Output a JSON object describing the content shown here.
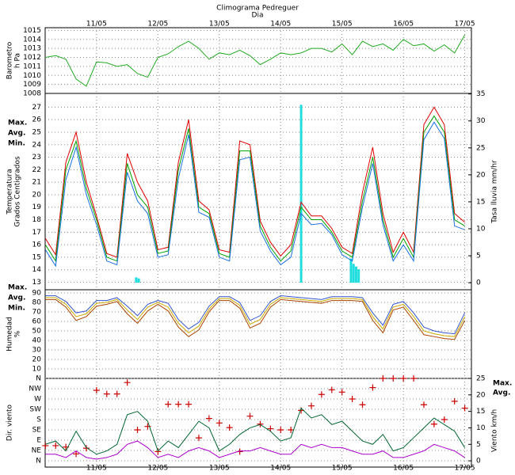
{
  "chart_data": [
    {
      "type": "line",
      "title": "Climograma Pedreguer",
      "xlabel": "Dia",
      "xtick_labels": "top",
      "ylabel": [
        "Barometro",
        "h Pa"
      ],
      "ylabel_color": "#22aa22",
      "x": [
        4,
        8,
        12,
        16,
        20,
        24,
        28,
        32,
        36,
        40,
        44,
        48,
        52,
        56,
        60,
        64,
        68,
        72,
        76,
        80,
        84,
        88,
        92,
        96,
        100,
        104,
        108,
        112,
        116,
        120,
        124,
        128,
        132,
        136,
        140,
        144,
        148,
        152,
        156,
        160,
        164,
        168
      ],
      "xlim": [
        3.9,
        170.6
      ],
      "xticks": [
        {
          "value": 24,
          "label": "11/05"
        },
        {
          "value": 48,
          "label": "12/05"
        },
        {
          "value": 72,
          "label": "13/05"
        },
        {
          "value": 96,
          "label": "14/05"
        },
        {
          "value": 120,
          "label": "15/05"
        },
        {
          "value": 144,
          "label": "16/05"
        },
        {
          "value": 168,
          "label": "17/05"
        }
      ],
      "ylim": [
        1008,
        1015.3
      ],
      "yticks": [
        1008,
        1009,
        1010,
        1011,
        1012,
        1013,
        1014,
        1015
      ],
      "grid": true,
      "series": [
        {
          "color": "#22aa22",
          "values": [
            1012,
            1012.2,
            1011.8,
            1009.6,
            1008.8,
            1011.5,
            1011.4,
            1011,
            1011.2,
            1010.2,
            1009.8,
            1012,
            1012.4,
            1013.2,
            1013.8,
            1013,
            1011.8,
            1012.5,
            1012.3,
            1012.8,
            1012.2,
            1011.2,
            1011.8,
            1012.5,
            1012.3,
            1012.5,
            1013,
            1013,
            1012.6,
            1013.5,
            1012.3,
            1013.8,
            1013.2,
            1013.5,
            1012.8,
            1014,
            1013.3,
            1013.5,
            1012.7,
            1013.4,
            1012.5,
            1014.5
          ]
        }
      ]
    },
    {
      "type": "line",
      "legend": "left",
      "ylabel": [
        "Temperatura",
        "Grados Centigrados"
      ],
      "ylabel_color": "#dd2222",
      "y2label": [
        "Tasa lluvia mm/hr"
      ],
      "y2label_color": "#00dddd",
      "x": [
        4,
        8,
        12,
        16,
        20,
        24,
        28,
        32,
        36,
        40,
        44,
        48,
        52,
        56,
        60,
        64,
        68,
        72,
        76,
        80,
        84,
        88,
        92,
        96,
        100,
        104,
        108,
        112,
        116,
        120,
        124,
        128,
        132,
        136,
        140,
        144,
        148,
        152,
        156,
        160,
        164,
        168
      ],
      "xlim": [
        3.9,
        170.6
      ],
      "xticks": [
        {
          "value": 24,
          "label": "11/05"
        },
        {
          "value": 48,
          "label": "12/05"
        },
        {
          "value": 72,
          "label": "13/05"
        },
        {
          "value": 96,
          "label": "14/05"
        },
        {
          "value": 120,
          "label": "15/05"
        },
        {
          "value": 144,
          "label": "16/05"
        },
        {
          "value": 168,
          "label": "17/05"
        }
      ],
      "ylim": [
        12.4,
        28.1
      ],
      "yticks": [
        13,
        14,
        15,
        16,
        17,
        18,
        19,
        20,
        21,
        22,
        23,
        24,
        25,
        26,
        27
      ],
      "y2lim": [
        -1.3,
        35.1
      ],
      "y2ticks": [
        0,
        5,
        10,
        15,
        20,
        25,
        30,
        35
      ],
      "grid": true,
      "series": [
        {
          "name": "Max.",
          "color": "#dd0000",
          "values": [
            16.5,
            15.2,
            22.6,
            25,
            21,
            18.3,
            15.3,
            15,
            23.3,
            21,
            19.5,
            15.6,
            15.8,
            22.6,
            26,
            19.5,
            18.8,
            15.6,
            15.4,
            24.3,
            24,
            17.9,
            16.2,
            15.1,
            16,
            19.4,
            18.3,
            18.3,
            17.3,
            15.8,
            15.3,
            20.2,
            23.8,
            18.5,
            15.4,
            17,
            15.4,
            25.6,
            27,
            25.6,
            18.5,
            17.8
          ]
        },
        {
          "name": "Avg.",
          "color": "#00a000",
          "values": [
            16,
            14.7,
            22,
            24.3,
            20.5,
            18,
            15,
            14.7,
            22.5,
            20,
            19,
            15.3,
            15.5,
            22,
            25.3,
            19,
            18.5,
            15.3,
            15,
            23.5,
            23.5,
            17.5,
            15.8,
            14.7,
            15.5,
            19,
            18,
            18,
            17,
            15.5,
            15,
            19.5,
            23,
            18,
            15,
            16.5,
            15,
            25,
            26.3,
            25,
            18,
            17.5
          ]
        },
        {
          "name": "Min.",
          "color": "#1a6fe0",
          "values": [
            15.6,
            14.3,
            21.2,
            23.8,
            20,
            17.6,
            14.7,
            14.4,
            21.8,
            19.5,
            18.5,
            15,
            15.2,
            21.3,
            24.8,
            18.6,
            18.2,
            15,
            14.7,
            22.8,
            23,
            17.1,
            15.5,
            14.4,
            15,
            18.5,
            17.6,
            17.7,
            16.8,
            15.2,
            14.7,
            19,
            22.5,
            17.6,
            14.7,
            16,
            14.7,
            24.4,
            25.8,
            24.5,
            17.5,
            17.2
          ]
        }
      ],
      "bars": {
        "color": "#22dddd",
        "axis": "y2",
        "x": [
          39.5,
          40.5,
          104,
          123.5,
          124.5,
          125.5,
          126.5
        ],
        "values": [
          1,
          0.8,
          33,
          4.5,
          3.5,
          3,
          2.5
        ]
      }
    },
    {
      "type": "line",
      "legend": "left",
      "ylabel": [
        "Humedad",
        "%"
      ],
      "ylabel_color": "#cc3300",
      "x": [
        4,
        8,
        12,
        16,
        20,
        24,
        28,
        32,
        36,
        40,
        44,
        48,
        52,
        56,
        60,
        64,
        68,
        72,
        76,
        80,
        84,
        88,
        92,
        96,
        100,
        104,
        108,
        112,
        116,
        120,
        124,
        128,
        132,
        136,
        140,
        144,
        148,
        152,
        156,
        160,
        164,
        168
      ],
      "xlim": [
        3.9,
        170.6
      ],
      "xticks": [
        {
          "value": 24,
          "label": "11/05"
        },
        {
          "value": 48,
          "label": "12/05"
        },
        {
          "value": 72,
          "label": "13/05"
        },
        {
          "value": 96,
          "label": "14/05"
        },
        {
          "value": 120,
          "label": "15/05"
        },
        {
          "value": 144,
          "label": "16/05"
        },
        {
          "value": 168,
          "label": "17/05"
        }
      ],
      "ylim": [
        0,
        93.3
      ],
      "yticks": [
        10,
        20,
        30,
        40,
        50,
        60,
        70,
        80,
        90
      ],
      "grid": true,
      "series": [
        {
          "name": "Max.",
          "color": "#3355cc",
          "values": [
            87,
            87,
            81,
            69,
            71,
            82,
            82,
            85,
            76,
            66,
            78,
            82,
            79,
            62,
            52,
            59,
            76,
            86,
            86,
            80,
            61,
            66,
            81,
            87,
            86,
            85,
            84,
            83,
            86,
            86,
            86,
            85,
            69,
            56,
            78,
            81,
            69,
            54,
            50,
            48,
            47,
            69
          ]
        },
        {
          "name": "Avg.",
          "color": "#ccaa00",
          "values": [
            85,
            85,
            78,
            65,
            68,
            79,
            80,
            83,
            72,
            62,
            75,
            80,
            75,
            58,
            48,
            55,
            73,
            84,
            84,
            77,
            57,
            62,
            78,
            85,
            84,
            83,
            82,
            81,
            84,
            84,
            84,
            83,
            65,
            52,
            75,
            78,
            65,
            50,
            47,
            45,
            44,
            65
          ]
        },
        {
          "name": "Min.",
          "color": "#aa4400",
          "values": [
            83,
            83,
            75,
            61,
            65,
            76,
            78,
            81,
            68,
            58,
            71,
            78,
            71,
            54,
            44,
            51,
            70,
            82,
            82,
            74,
            53,
            58,
            75,
            83,
            82,
            81,
            80,
            79,
            82,
            82,
            82,
            81,
            61,
            48,
            72,
            75,
            61,
            46,
            44,
            42,
            41,
            61
          ]
        }
      ]
    },
    {
      "type": "line",
      "legend": "right",
      "xtick_labels": "bottom",
      "ylabel": [
        "Dir. viento"
      ],
      "ylabel_color": "#dd2222",
      "y2label": [
        "Viento km/h"
      ],
      "y2label_color": "#aa00cc",
      "x": [
        4,
        8,
        12,
        16,
        20,
        24,
        28,
        32,
        36,
        40,
        44,
        48,
        52,
        56,
        60,
        64,
        68,
        72,
        76,
        80,
        84,
        88,
        92,
        96,
        100,
        104,
        108,
        112,
        116,
        120,
        124,
        128,
        132,
        136,
        140,
        144,
        148,
        152,
        156,
        160,
        164,
        168
      ],
      "xlim": [
        3.9,
        170.6
      ],
      "xticks": [
        {
          "value": 24,
          "label": "11/05"
        },
        {
          "value": 48,
          "label": "12/05"
        },
        {
          "value": 72,
          "label": "13/05"
        },
        {
          "value": 96,
          "label": "14/05"
        },
        {
          "value": 120,
          "label": "15/05"
        },
        {
          "value": 144,
          "label": "16/05"
        },
        {
          "value": 168,
          "label": "17/05"
        }
      ],
      "ylim": [
        -27.7,
        360
      ],
      "yticks": [
        {
          "value": 0,
          "label": "N"
        },
        {
          "value": 45,
          "label": "NE"
        },
        {
          "value": 90,
          "label": "E"
        },
        {
          "value": 135,
          "label": "SE"
        },
        {
          "value": 180,
          "label": "S"
        },
        {
          "value": 225,
          "label": "SW"
        },
        {
          "value": 270,
          "label": "W"
        },
        {
          "value": 315,
          "label": "NW"
        },
        {
          "value": 360,
          "label": "N"
        }
      ],
      "y2lim": [
        -1.9,
        25
      ],
      "y2ticks": [
        0,
        5,
        10,
        15,
        20,
        25
      ],
      "grid": true,
      "series": [
        {
          "type": "scatter",
          "color": "#cc0000",
          "values": [
            66,
            66,
            60,
            30,
            55,
            308,
            292,
            292,
            342,
            135,
            150,
            40,
            247,
            247,
            247,
            100,
            185,
            165,
            145,
            40,
            195,
            160,
            140,
            135,
            135,
            220,
            240,
            290,
            310,
            300,
            270,
            245,
            320,
            360,
            360,
            360,
            360,
            245,
            160,
            180,
            260,
            230
          ]
        },
        {
          "name": "Max.",
          "color": "#006633",
          "axis": "y2",
          "values": [
            5,
            6,
            3,
            9,
            4,
            2,
            3,
            5,
            14,
            15,
            12,
            3,
            6,
            4,
            8,
            12,
            10,
            3,
            5,
            8,
            10,
            11,
            9,
            6,
            7,
            16,
            13,
            14,
            11,
            12,
            9,
            6,
            5,
            8,
            3,
            4,
            7,
            10,
            13,
            11,
            9,
            4
          ]
        },
        {
          "name": "Avg.",
          "color": "#aa00cc",
          "axis": "y2",
          "values": [
            2,
            2,
            1,
            3,
            1,
            0.5,
            1,
            2,
            5,
            6,
            4,
            1,
            2,
            1,
            3,
            4,
            3,
            1,
            2,
            3,
            3,
            4,
            3,
            2,
            2,
            5,
            4,
            5,
            4,
            4,
            3,
            2,
            2,
            3,
            1,
            1,
            2,
            3,
            5,
            4,
            3,
            1
          ]
        }
      ]
    }
  ]
}
